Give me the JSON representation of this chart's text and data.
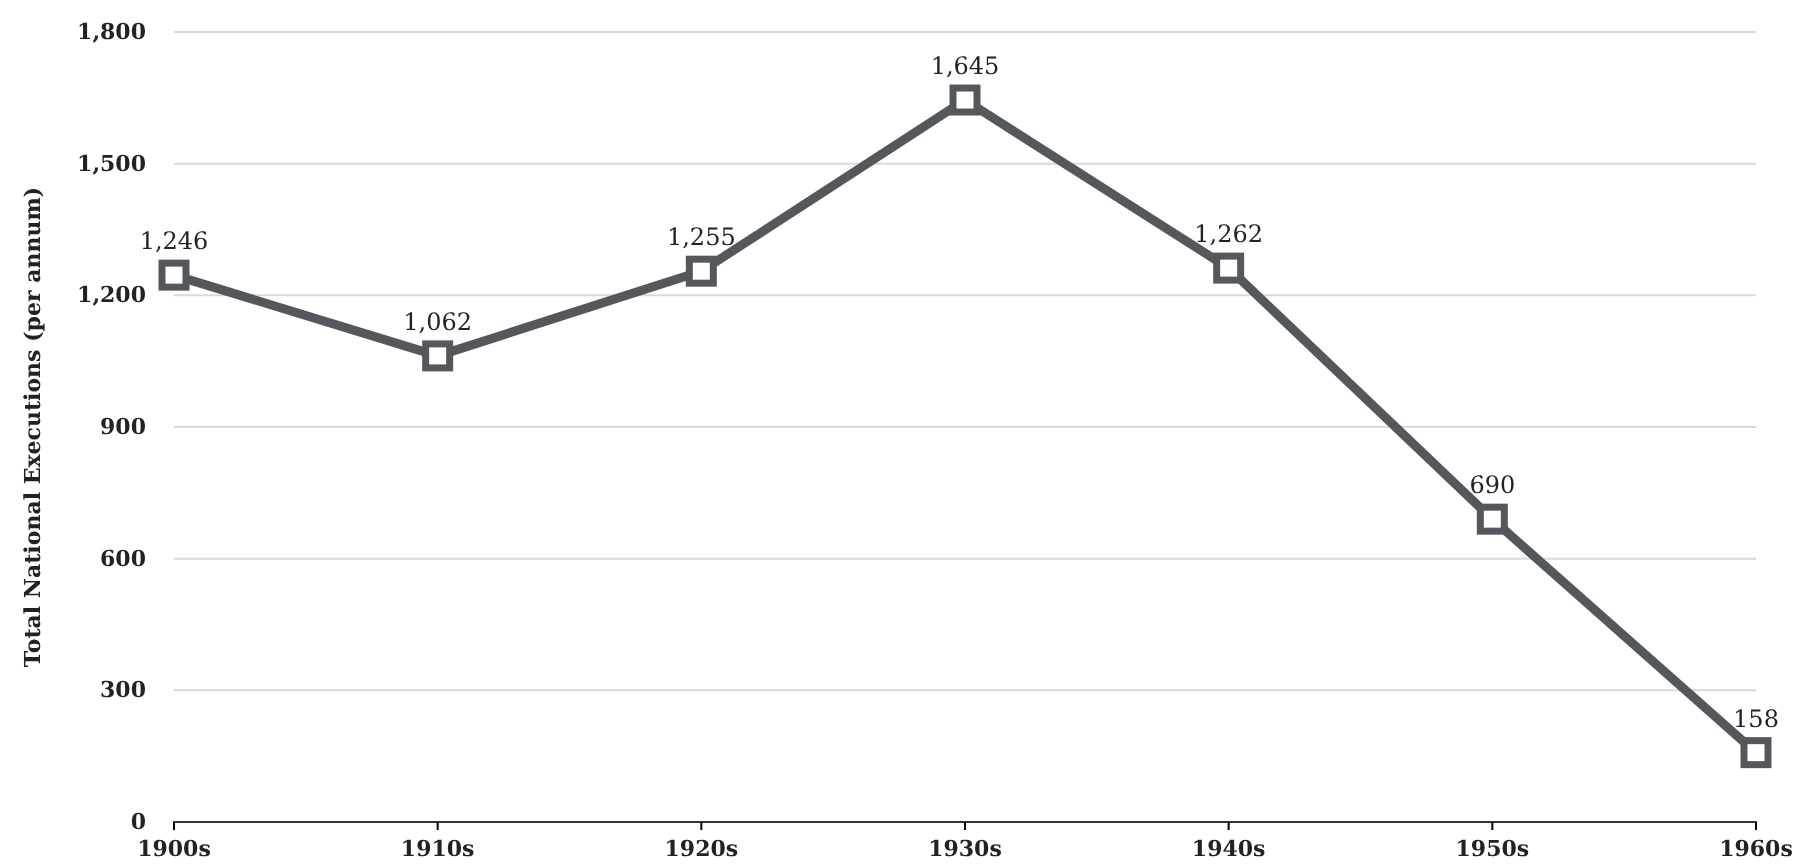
{
  "chart_data": {
    "type": "line",
    "ylabel": "Total National Executions (per annum)",
    "categories": [
      "1900s",
      "1910s",
      "1920s",
      "1930s",
      "1940s",
      "1950s",
      "1960s"
    ],
    "series": [
      {
        "color": "#54575c",
        "values": [
          1246,
          1062,
          1255,
          1645,
          1262,
          690,
          158
        ],
        "value_labels": [
          "1,246",
          "1,062",
          "1,255",
          "1,645",
          "1,262",
          "690",
          "158"
        ]
      }
    ],
    "ylim": [
      0,
      1800
    ],
    "yticks": [
      {
        "value": 0,
        "label": "0"
      },
      {
        "value": 300,
        "label": "300"
      },
      {
        "value": 600,
        "label": "600"
      },
      {
        "value": 900,
        "label": "900"
      },
      {
        "value": 1200,
        "label": "1,200"
      },
      {
        "value": 1500,
        "label": "1,500"
      },
      {
        "value": 1800,
        "label": "1,800"
      }
    ],
    "grid": "y",
    "marker": "square",
    "line_style": "solid"
  }
}
